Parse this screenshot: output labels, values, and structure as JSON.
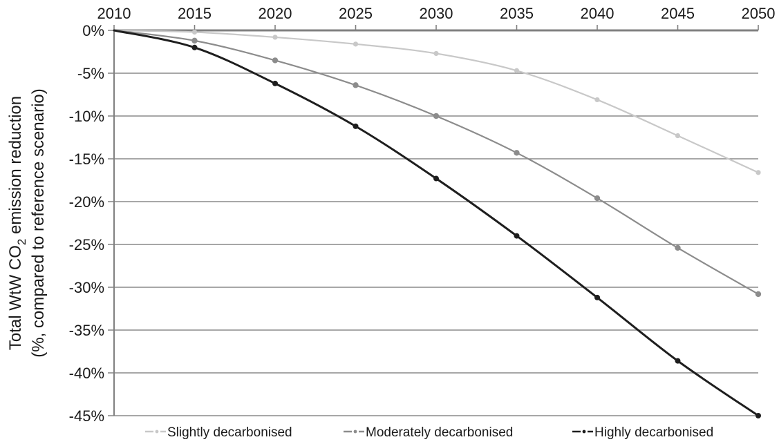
{
  "chart_data": {
    "type": "line",
    "x": [
      2010,
      2015,
      2020,
      2025,
      2030,
      2035,
      2040,
      2045,
      2050
    ],
    "xticks": [
      "2010",
      "2015",
      "2020",
      "2025",
      "2030",
      "2035",
      "2040",
      "2045",
      "2050"
    ],
    "yticks": [
      "0%",
      "-5%",
      "-10%",
      "-15%",
      "-20%",
      "-25%",
      "-30%",
      "-35%",
      "-40%",
      "-45%"
    ],
    "ylim": [
      -45,
      0
    ],
    "xlim": [
      2010,
      2050
    ],
    "ylabel": {
      "line1_pre": "Total WtW CO",
      "line1_sub": "2",
      "line1_post": " emission reduction",
      "line2": "(%, compared to reference scenario)"
    },
    "x_axis_position": "top",
    "grid": "horizontal",
    "legend_position": "bottom",
    "series": [
      {
        "name": "Slightly decarbonised",
        "color": "#c8c8c8",
        "dash": "dash-dot",
        "values": [
          0,
          -0.2,
          -0.8,
          -1.6,
          -2.7,
          -4.7,
          -8.1,
          -12.3,
          -16.6
        ]
      },
      {
        "name": "Moderately decarbonised",
        "color": "#8c8c8c",
        "dash": "dash-dot",
        "values": [
          0,
          -1.2,
          -3.5,
          -6.4,
          -10.0,
          -14.3,
          -19.6,
          -25.4,
          -30.8
        ]
      },
      {
        "name": "Highly decarbonised",
        "color": "#1e1e1e",
        "dash": "dash-dot",
        "values": [
          0,
          -2.0,
          -6.2,
          -11.2,
          -17.3,
          -24.0,
          -31.2,
          -38.6,
          -45.0
        ]
      }
    ]
  }
}
